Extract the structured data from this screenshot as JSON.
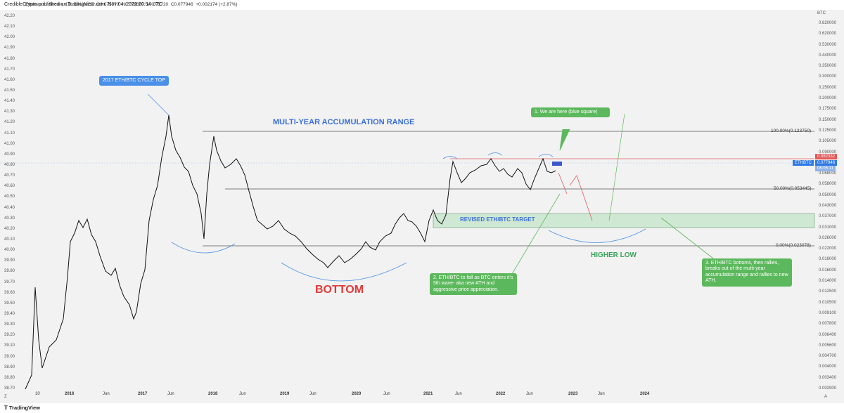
{
  "header": {
    "publisher_line": "CredibleCrypto published on TradingView.com, Nov 04, 2022 20:54 UTC"
  },
  "legend": {
    "symbol": "Ethereum / Bitcoin, 1D, BINANCE",
    "o_label": "O",
    "o": "0.075770",
    "h_label": "H",
    "h": "0.078889",
    "l_label": "L",
    "l": "0.075720",
    "c_label": "C",
    "c": "0.077946",
    "change": "+0.002174 (+2.87%)"
  },
  "right_axis": {
    "unit": "BTC",
    "ticks": [
      "0.820000",
      "0.620000",
      "0.530000",
      "0.440000",
      "0.350000",
      "0.300000",
      "0.250000",
      "0.200000",
      "0.175000",
      "0.150000",
      "0.125000",
      "0.105000",
      "0.090000",
      "0.080000",
      "0.068000",
      "0.058000",
      "0.050000",
      "0.043000",
      "0.037000",
      "0.031000",
      "0.026000",
      "0.022000",
      "0.019000",
      "0.016000",
      "0.014000",
      "0.012500",
      "0.010500",
      "0.009100",
      "0.007800",
      "0.006400",
      "0.005600",
      "0.004700",
      "0.004000",
      "0.003400",
      "0.002900"
    ],
    "auto_label": "A"
  },
  "left_axis": {
    "ticks": [
      "42.20",
      "42.10",
      "42.00",
      "41.90",
      "41.80",
      "41.70",
      "41.60",
      "41.50",
      "41.40",
      "41.30",
      "41.20",
      "41.10",
      "41.00",
      "40.90",
      "40.80",
      "40.70",
      "40.60",
      "40.50",
      "40.40",
      "40.30",
      "40.20",
      "40.10",
      "40.00",
      "39.90",
      "39.80",
      "39.70",
      "39.60",
      "39.50",
      "39.40",
      "39.30",
      "39.20",
      "39.10",
      "39.00",
      "38.90",
      "38.80",
      "38.70"
    ],
    "z_label": "Z"
  },
  "x_axis": {
    "labels": [
      {
        "t": "10",
        "year": false
      },
      {
        "t": "2016",
        "year": true
      },
      {
        "t": "Jun",
        "year": false
      },
      {
        "t": "2017",
        "year": true
      },
      {
        "t": "Jun",
        "year": false
      },
      {
        "t": "2018",
        "year": true
      },
      {
        "t": "Jun",
        "year": false
      },
      {
        "t": "2019",
        "year": true
      },
      {
        "t": "Jun",
        "year": false
      },
      {
        "t": "2020",
        "year": true
      },
      {
        "t": "Jun",
        "year": false
      },
      {
        "t": "2021",
        "year": true
      },
      {
        "t": "Jun",
        "year": false
      },
      {
        "t": "2022",
        "year": true
      },
      {
        "t": "Jun",
        "year": false
      },
      {
        "t": "2023",
        "year": true
      },
      {
        "t": "Jun",
        "year": false
      },
      {
        "t": "2024",
        "year": true
      }
    ]
  },
  "annotations": {
    "cycle_top": "2017 ETH/BTC CYCLE TOP",
    "range_title": "MULTI-YEAR ACCUMULATION RANGE",
    "bottom": "BOTTOM",
    "higher_low": "HIGHER LOW",
    "revised_target": "REVISED ETH/BTC TARGET",
    "fib_100": "100.00%(0.123750)",
    "fib_50": "50.00%(0.053445)",
    "fib_0": "0.00%(0.023078)",
    "note1": "1. We are here (blue square)",
    "note2": "2. ETH/BTC to fall as BTC enters it's 5th wave- aka new ATH and aggressive price appreciation.",
    "note3": "3. ETH/BTC bottoms, then rallies, breaks out of the multi-year accumulation range and rallies to new ATH."
  },
  "price_tags": {
    "red": "0.082332",
    "blue": "0.077946",
    "gray": "05:05:11",
    "symbol_tag": "ETHBTC"
  },
  "footer": {
    "brand": "TradingView"
  },
  "colors": {
    "accent_blue": "#4a8fe8",
    "accent_green": "#5cb85c",
    "bottom_red": "#e03a3a",
    "range_title_blue": "#3a6fd8",
    "higher_low_green": "#3aa35a",
    "target_zone": "#cfe8d3",
    "red_line": "#e35a5a"
  }
}
